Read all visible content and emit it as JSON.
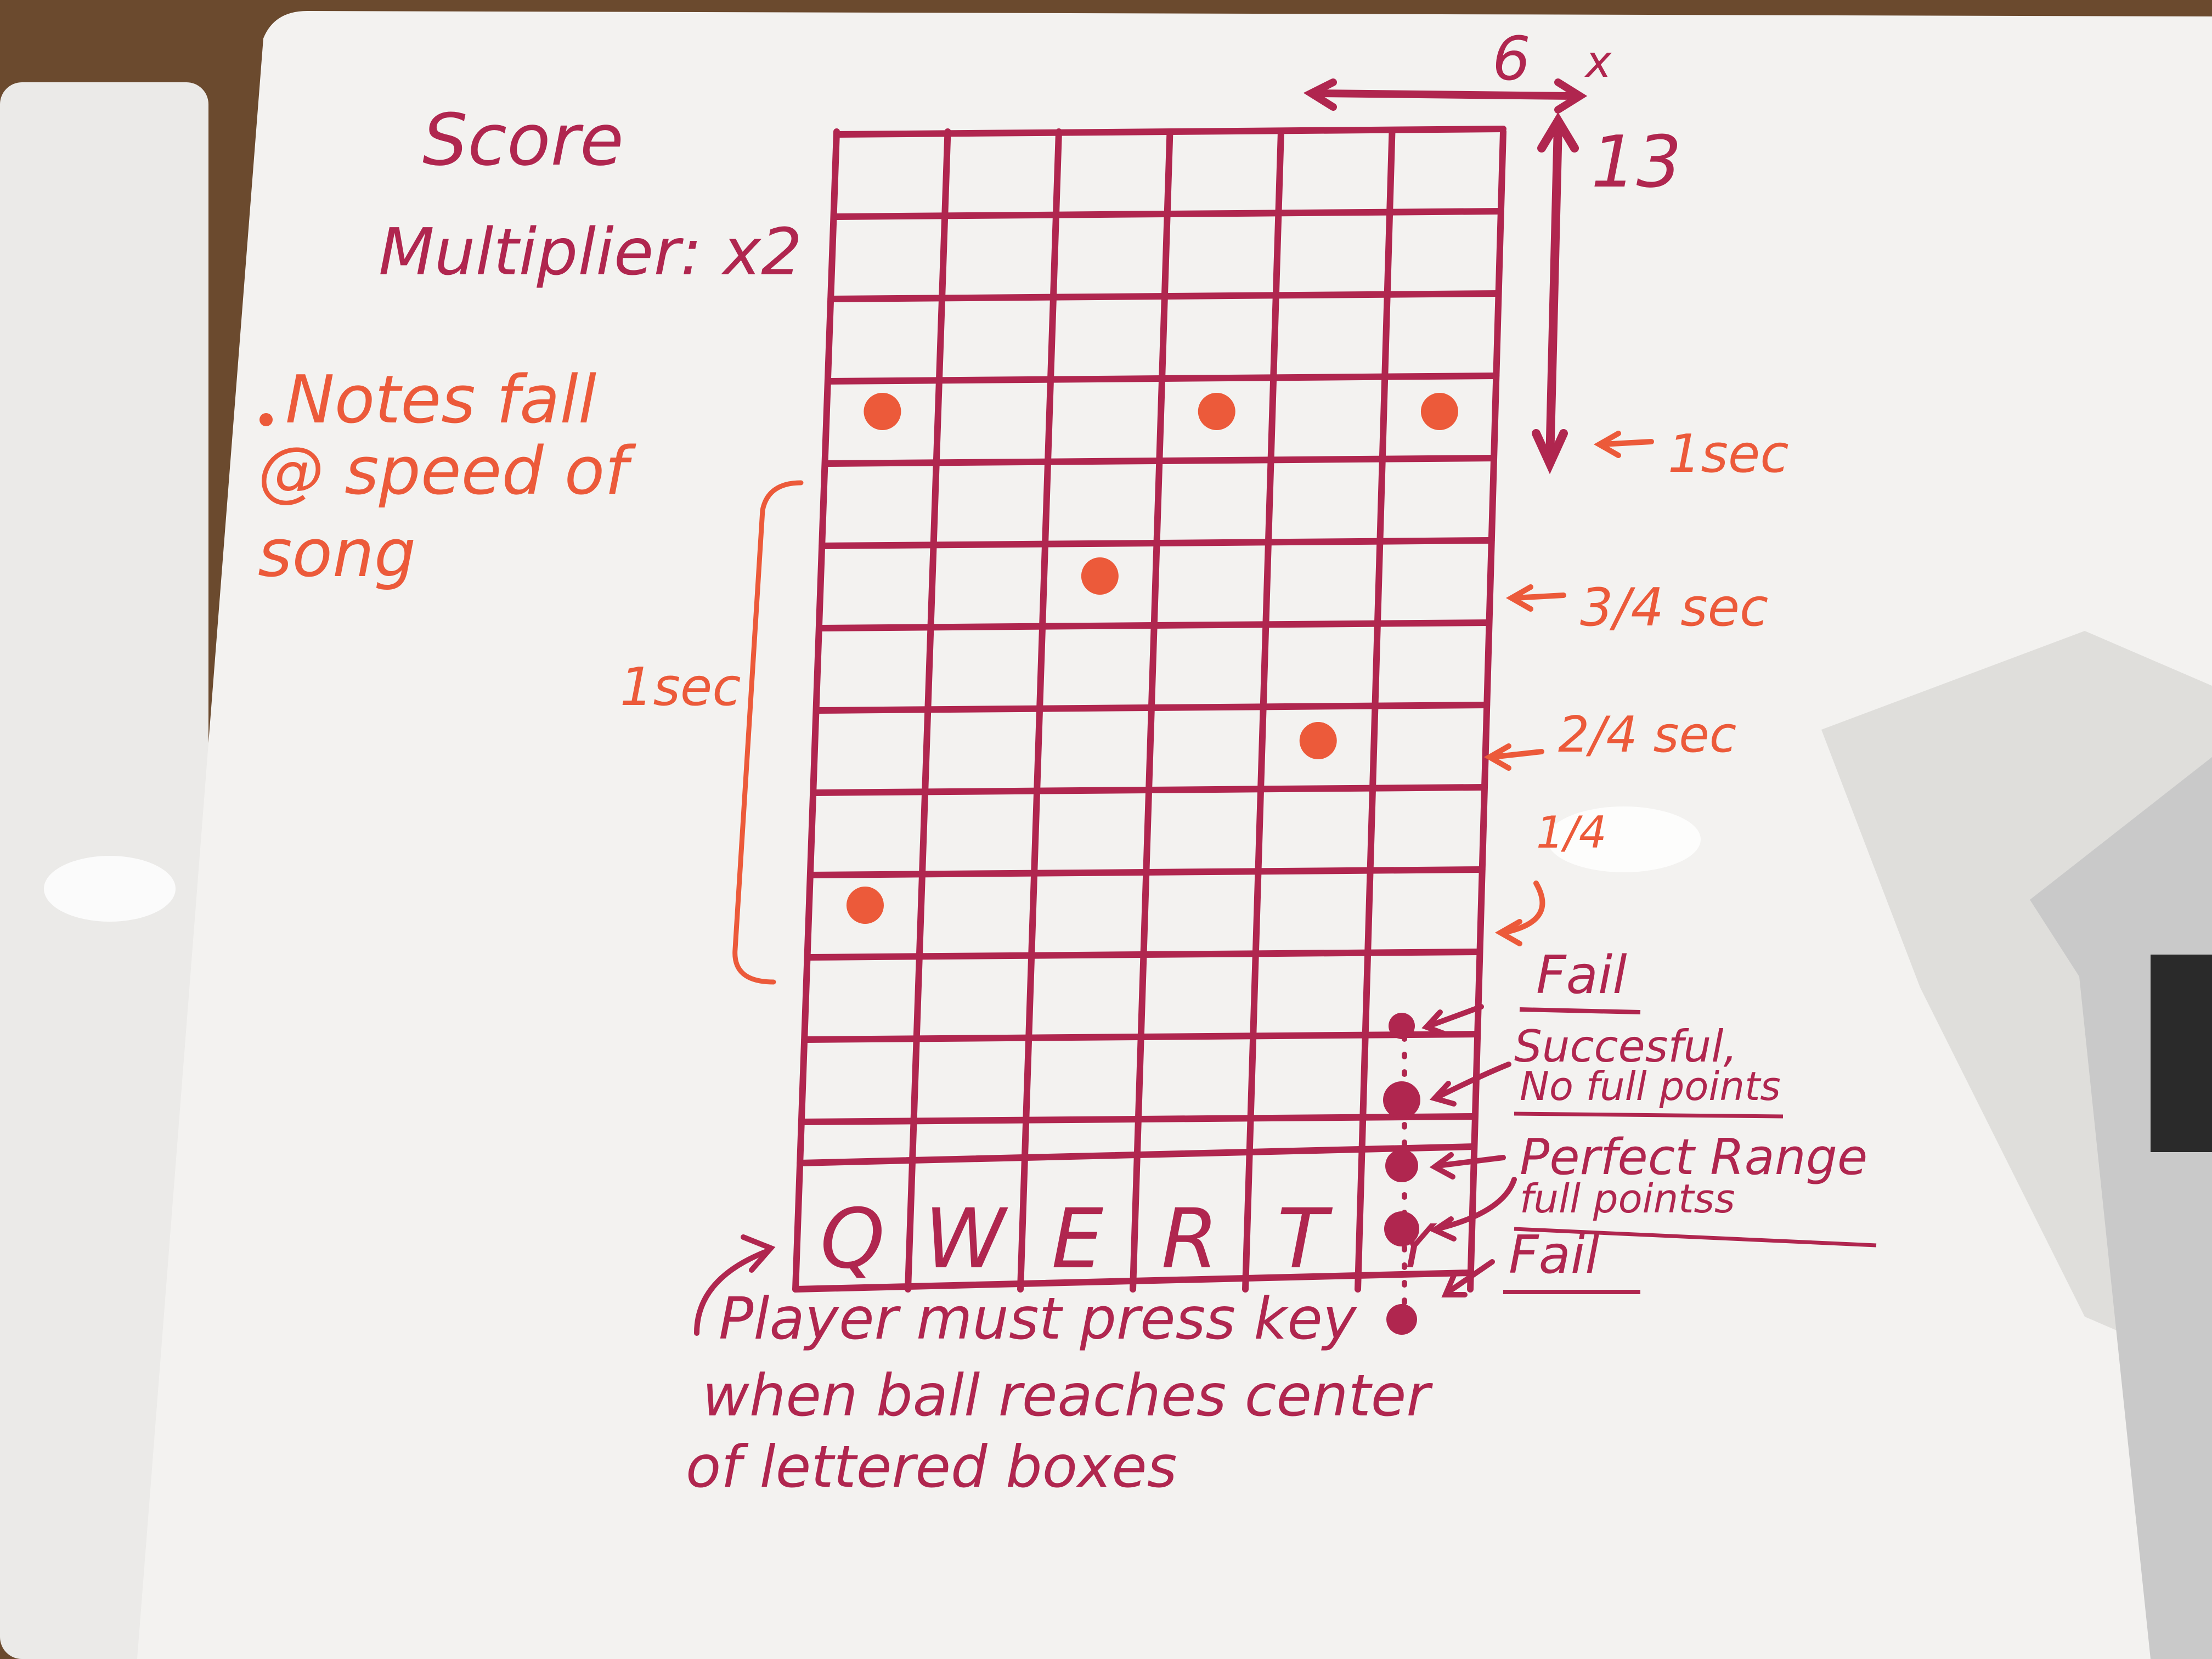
{
  "colors": {
    "marker_red": "#b0264f",
    "marker_orange": "#ec5a3a",
    "board": "#f3f2f0",
    "floor": "#6b4a2e"
  },
  "top_left": {
    "score_label": "Score",
    "multiplier_label": "Multiplier: x2"
  },
  "side_note": {
    "line1": "Notes fall",
    "line2": "@ speed of",
    "line3": "song"
  },
  "dimensions": {
    "columns": "6",
    "columns_axis": "x",
    "rows": "13"
  },
  "grid": {
    "columns": 6,
    "rows": 12,
    "keys": [
      "Q",
      "W",
      "E",
      "R",
      "T",
      "Y"
    ],
    "notes": [
      {
        "row": 3,
        "col": 1
      },
      {
        "row": 3,
        "col": 4
      },
      {
        "row": 3,
        "col": 6
      },
      {
        "row": 5,
        "col": 3
      },
      {
        "row": 7,
        "col": 5
      },
      {
        "row": 9,
        "col": 1
      }
    ]
  },
  "timing_labels": {
    "one_sec": "1sec",
    "three_quarter": "3/4 sec",
    "two_quarter": "2/4 sec",
    "one_quarter": "1/4",
    "bracket_label": "1sec"
  },
  "hit_zones": {
    "fail_top": "Fail",
    "successful_line1": "Succesful,",
    "successful_line2": "No full points",
    "perfect_line1": "Perfect Range",
    "perfect_line2": "full pointss",
    "fail_bottom": "Fail"
  },
  "instructions": {
    "line1": "Player must press key",
    "line2": "when ball reaches center",
    "line3": "of lettered boxes"
  }
}
